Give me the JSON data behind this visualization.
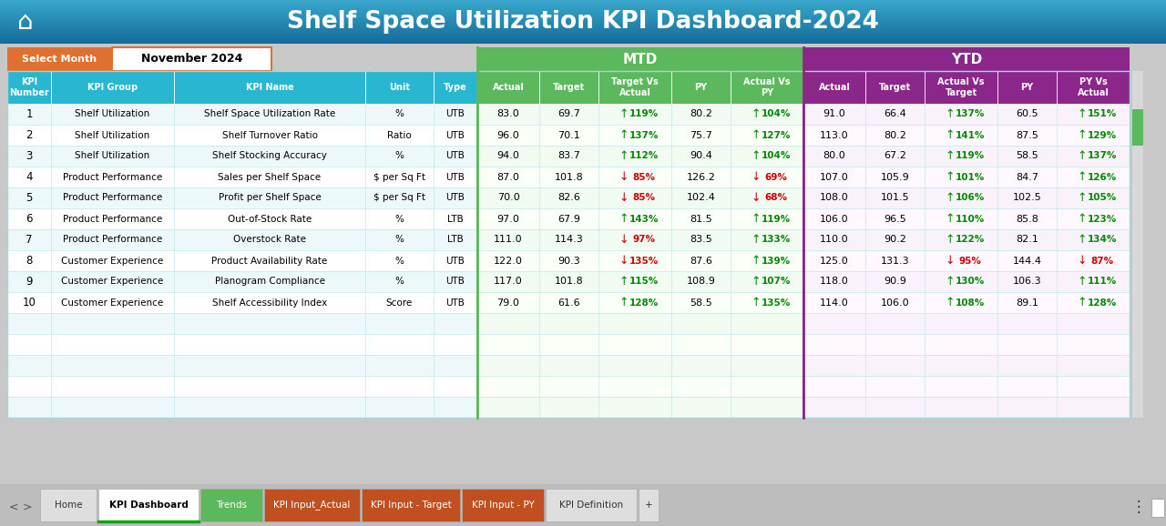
{
  "title": "Shelf Space Utilization KPI Dashboard-2024",
  "select_month_label": "Select Month",
  "month_value": "November 2024",
  "mtd_label": "MTD",
  "ytd_label": "YTD",
  "col_header_texts": [
    "KPI\nNumber",
    "KPI Group",
    "KPI Name",
    "Unit",
    "Type",
    "Actual",
    "Target",
    "Target Vs\nActual",
    "PY",
    "Actual Vs\nPY",
    "Actual",
    "Target",
    "Actual Vs\nTarget",
    "PY",
    "PY Vs\nActual"
  ],
  "kpi_data": [
    [
      1,
      "Shelf Utilization",
      "Shelf Space Utilization Rate",
      "%",
      "UTB",
      83.0,
      69.7,
      "119%",
      80.2,
      "104%",
      91.0,
      66.4,
      "137%",
      60.5,
      "151%"
    ],
    [
      2,
      "Shelf Utilization",
      "Shelf Turnover Ratio",
      "Ratio",
      "UTB",
      96.0,
      70.1,
      "137%",
      75.7,
      "127%",
      113.0,
      80.2,
      "141%",
      87.5,
      "129%"
    ],
    [
      3,
      "Shelf Utilization",
      "Shelf Stocking Accuracy",
      "%",
      "UTB",
      94.0,
      83.7,
      "112%",
      90.4,
      "104%",
      80.0,
      67.2,
      "119%",
      58.5,
      "137%"
    ],
    [
      4,
      "Product Performance",
      "Sales per Shelf Space",
      "$ per Sq Ft",
      "UTB",
      87.0,
      101.8,
      "85%",
      126.2,
      "69%",
      107.0,
      105.9,
      "101%",
      84.7,
      "126%"
    ],
    [
      5,
      "Product Performance",
      "Profit per Shelf Space",
      "$ per Sq Ft",
      "UTB",
      70.0,
      82.6,
      "85%",
      102.4,
      "68%",
      108.0,
      101.5,
      "106%",
      102.5,
      "105%"
    ],
    [
      6,
      "Product Performance",
      "Out-of-Stock Rate",
      "%",
      "LTB",
      97.0,
      67.9,
      "143%",
      81.5,
      "119%",
      106.0,
      96.5,
      "110%",
      85.8,
      "123%"
    ],
    [
      7,
      "Product Performance",
      "Overstock Rate",
      "%",
      "LTB",
      111.0,
      114.3,
      "97%",
      83.5,
      "133%",
      110.0,
      90.2,
      "122%",
      82.1,
      "134%"
    ],
    [
      8,
      "Customer Experience",
      "Product Availability Rate",
      "%",
      "UTB",
      122.0,
      90.3,
      "135%",
      87.6,
      "139%",
      125.0,
      131.3,
      "95%",
      144.4,
      "87%"
    ],
    [
      9,
      "Customer Experience",
      "Planogram Compliance",
      "%",
      "UTB",
      117.0,
      101.8,
      "115%",
      108.9,
      "107%",
      118.0,
      90.9,
      "130%",
      106.3,
      "111%"
    ],
    [
      10,
      "Customer Experience",
      "Shelf Accessibility Index",
      "Score",
      "UTB",
      79.0,
      61.6,
      "128%",
      58.5,
      "135%",
      114.0,
      106.0,
      "108%",
      89.1,
      "128%"
    ]
  ],
  "arrow_dirs_mtd": [
    [
      1,
      1,
      1,
      1,
      1
    ],
    [
      1,
      1,
      1,
      1,
      1
    ],
    [
      1,
      1,
      1,
      1,
      1
    ],
    [
      1,
      1,
      -1,
      1,
      -1
    ],
    [
      1,
      1,
      -1,
      1,
      -1
    ],
    [
      1,
      1,
      1,
      1,
      1
    ],
    [
      1,
      1,
      -1,
      1,
      1
    ],
    [
      1,
      1,
      -1,
      1,
      1
    ],
    [
      1,
      1,
      1,
      1,
      1
    ],
    [
      1,
      1,
      1,
      1,
      1
    ]
  ],
  "arrow_dirs_ytd": [
    [
      1,
      1,
      1,
      1,
      1
    ],
    [
      1,
      1,
      1,
      1,
      1
    ],
    [
      1,
      1,
      1,
      1,
      1
    ],
    [
      1,
      1,
      1,
      1,
      1
    ],
    [
      1,
      1,
      1,
      1,
      1
    ],
    [
      1,
      1,
      1,
      1,
      1
    ],
    [
      1,
      1,
      1,
      1,
      1
    ],
    [
      1,
      1,
      -1,
      -1,
      -1
    ],
    [
      1,
      1,
      1,
      1,
      1
    ],
    [
      1,
      1,
      1,
      1,
      1
    ]
  ],
  "tabs": [
    {
      "name": "Home",
      "color": "#E0E0E0",
      "text_color": "#333333",
      "bold": false
    },
    {
      "name": "KPI Dashboard",
      "color": "#FFFFFF",
      "text_color": "#000000",
      "bold": true,
      "underline_green": true
    },
    {
      "name": "Trends",
      "color": "#5CB85C",
      "text_color": "#FFFFFF",
      "bold": false
    },
    {
      "name": "KPI Input_Actual",
      "color": "#C05020",
      "text_color": "#FFFFFF",
      "bold": false
    },
    {
      "name": "KPI Input - Target",
      "color": "#C05020",
      "text_color": "#FFFFFF",
      "bold": false
    },
    {
      "name": "KPI Input - PY",
      "color": "#C05020",
      "text_color": "#FFFFFF",
      "bold": false
    },
    {
      "name": "KPI Definition",
      "color": "#E0E0E0",
      "text_color": "#333333",
      "bold": false
    },
    {
      "name": "+",
      "color": "#E0E0E0",
      "text_color": "#333333",
      "bold": false
    }
  ]
}
